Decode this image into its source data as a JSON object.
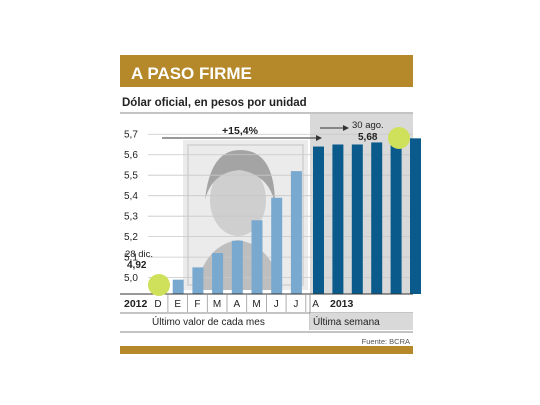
{
  "header": {
    "title": "A PASO FIRME",
    "band_color": "#b5892a"
  },
  "footer": {
    "source": "Fuente: BCRA",
    "band_color": "#b5892a"
  },
  "colors": {
    "monthly_bar": "#7aa9cf",
    "weekly_bar": "#0a5b8c",
    "weekly_bg": "#d9d9d9",
    "highlight": "#cfe05a"
  },
  "chart_data": {
    "type": "bar",
    "subtitle": "Dólar oficial, en pesos por unidad",
    "ylim": [
      4.92,
      5.75
    ],
    "yticks": [
      "5,0",
      "5,1",
      "5,2",
      "5,3",
      "5,4",
      "5,5",
      "5,6",
      "5,7"
    ],
    "ytick_values": [
      5.0,
      5.1,
      5.2,
      5.3,
      5.4,
      5.5,
      5.6,
      5.7
    ],
    "x_labels": [
      "D",
      "E",
      "F",
      "M",
      "A",
      "M",
      "J",
      "J",
      "A"
    ],
    "year_labels": [
      "2012",
      "2013"
    ],
    "series": [
      {
        "name": "Último valor de cada mes",
        "values": [
          4.92,
          4.99,
          5.05,
          5.12,
          5.18,
          5.28,
          5.39,
          5.52
        ]
      },
      {
        "name": "Última semana",
        "values": [
          5.64,
          5.65,
          5.65,
          5.66,
          5.67,
          5.68
        ]
      }
    ],
    "annotations": {
      "start_date": "28 dic.",
      "start_value": "4,92",
      "end_date": "30 ago.",
      "end_value": "5,68",
      "change": "+15,4%"
    },
    "grid": true
  }
}
